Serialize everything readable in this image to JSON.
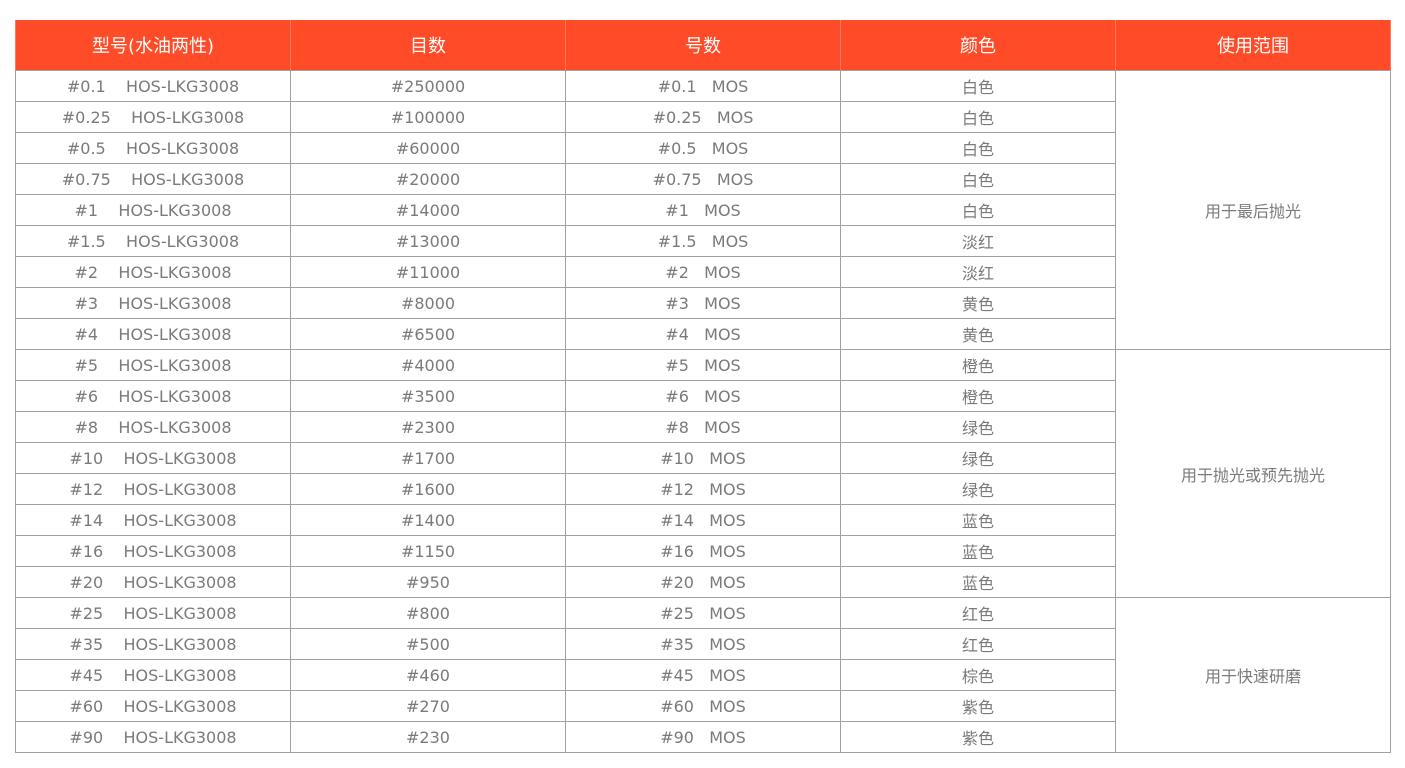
{
  "colors": {
    "header_bg": "#ff4b27",
    "text": "#7a7a7a",
    "border": "#a0a0a0"
  },
  "headers": [
    "型号(水油两性)",
    "目数",
    "号数",
    "颜色",
    "使用范围"
  ],
  "rows": [
    [
      "#0.1    HOS-LKG3008",
      "#250000",
      "#0.1   MOS",
      "白色"
    ],
    [
      "#0.25    HOS-LKG3008",
      "#100000",
      "#0.25   MOS",
      "白色"
    ],
    [
      "#0.5    HOS-LKG3008",
      "#60000",
      "#0.5   MOS",
      "白色"
    ],
    [
      "#0.75    HOS-LKG3008",
      "#20000",
      "#0.75   MOS",
      "白色"
    ],
    [
      "#1    HOS-LKG3008",
      "#14000",
      "#1   MOS",
      "白色"
    ],
    [
      "#1.5    HOS-LKG3008",
      "#13000",
      "#1.5   MOS",
      "淡红"
    ],
    [
      "#2    HOS-LKG3008",
      "#11000",
      "#2   MOS",
      "淡红"
    ],
    [
      "#3    HOS-LKG3008",
      "#8000",
      "#3   MOS",
      "黄色"
    ],
    [
      "#4    HOS-LKG3008",
      "#6500",
      "#4   MOS",
      "黄色"
    ],
    [
      "#5    HOS-LKG3008",
      "#4000",
      "#5   MOS",
      "橙色"
    ],
    [
      "#6    HOS-LKG3008",
      "#3500",
      "#6   MOS",
      "橙色"
    ],
    [
      "#8    HOS-LKG3008",
      "#2300",
      "#8   MOS",
      "绿色"
    ],
    [
      "#10    HOS-LKG3008",
      "#1700",
      "#10   MOS",
      "绿色"
    ],
    [
      "#12    HOS-LKG3008",
      "#1600",
      "#12   MOS",
      "绿色"
    ],
    [
      "#14    HOS-LKG3008",
      "#1400",
      "#14   MOS",
      "蓝色"
    ],
    [
      "#16    HOS-LKG3008",
      "#1150",
      "#16   MOS",
      "蓝色"
    ],
    [
      "#20    HOS-LKG3008",
      "#950",
      "#20   MOS",
      "蓝色"
    ],
    [
      "#25    HOS-LKG3008",
      "#800",
      "#25   MOS",
      "红色"
    ],
    [
      "#35    HOS-LKG3008",
      "#500",
      "#35   MOS",
      "红色"
    ],
    [
      "#45    HOS-LKG3008",
      "#460",
      "#45   MOS",
      "棕色"
    ],
    [
      "#60    HOS-LKG3008",
      "#270",
      "#60   MOS",
      "紫色"
    ],
    [
      "#90    HOS-LKG3008",
      "#230",
      "#90   MOS",
      "紫色"
    ]
  ],
  "scopes": [
    {
      "label": "用于最后抛光",
      "span": 9
    },
    {
      "label": "用于抛光或预先抛光",
      "span": 8
    },
    {
      "label": "用于快速研磨",
      "span": 5
    }
  ]
}
